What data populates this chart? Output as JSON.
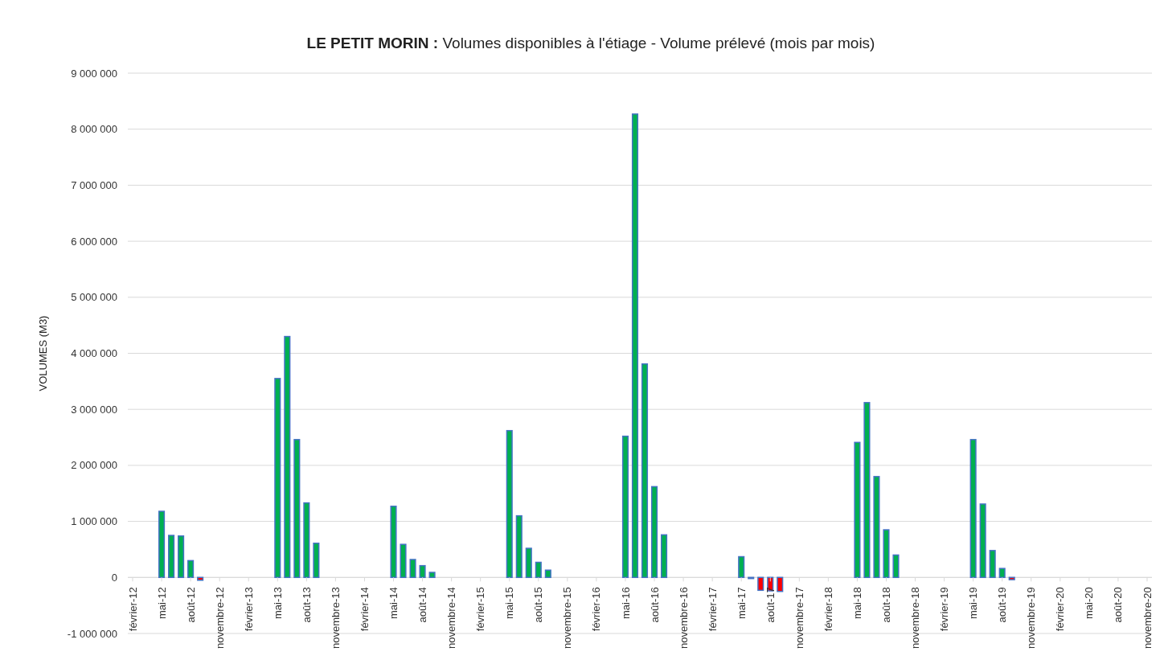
{
  "chart_data": {
    "type": "bar",
    "title": "LE PETIT MORIN : Volumes disponibles à l'étiage - Volume prélevé (mois par mois)",
    "ylabel": "VOLUMES (M3)",
    "categories": [
      "février-12",
      null,
      null,
      "mai-12",
      null,
      null,
      "août-12",
      null,
      null,
      "novembre-12",
      null,
      null,
      "février-13",
      null,
      null,
      "mai-13",
      null,
      null,
      "août-13",
      null,
      null,
      "novembre-13",
      null,
      null,
      "février-14",
      null,
      null,
      "mai-14",
      null,
      null,
      "août-14",
      null,
      null,
      "novembre-14",
      null,
      null,
      "février-15",
      null,
      null,
      "mai-15",
      null,
      null,
      "août-15",
      null,
      null,
      "novembre-15",
      null,
      null,
      "février-16",
      null,
      null,
      "mai-16",
      null,
      null,
      "août-16",
      null,
      null,
      "novembre-16",
      null,
      null,
      "février-17",
      null,
      null,
      "mai-17",
      null,
      null,
      "août-17",
      null,
      null,
      "novembre-17",
      null,
      null,
      "février-18",
      null,
      null,
      "mai-18",
      null,
      null,
      "août-18",
      null,
      null,
      "novembre-18",
      null,
      null,
      "février-19",
      null,
      null,
      "mai-19",
      null,
      null,
      "août-19",
      null,
      null,
      "novembre-19",
      null,
      null,
      "février-20",
      null,
      null,
      "mai-20",
      null,
      null,
      "août-20",
      null,
      null,
      "novembre-20"
    ],
    "values": [
      null,
      null,
      null,
      1180000,
      750000,
      740000,
      300000,
      -50000,
      null,
      null,
      null,
      null,
      null,
      null,
      null,
      3550000,
      4300000,
      2460000,
      1330000,
      610000,
      null,
      null,
      null,
      null,
      null,
      null,
      null,
      1270000,
      590000,
      320000,
      210000,
      90000,
      null,
      null,
      null,
      null,
      null,
      null,
      null,
      2620000,
      1100000,
      520000,
      270000,
      130000,
      null,
      null,
      null,
      null,
      null,
      null,
      null,
      2520000,
      8270000,
      3810000,
      1620000,
      760000,
      null,
      null,
      null,
      null,
      null,
      null,
      null,
      370000,
      -20000,
      -230000,
      -240000,
      -250000,
      null,
      null,
      null,
      null,
      null,
      null,
      null,
      2410000,
      3120000,
      1800000,
      850000,
      400000,
      null,
      null,
      null,
      null,
      null,
      null,
      null,
      2460000,
      1310000,
      480000,
      160000,
      -40000,
      null,
      null,
      null,
      null,
      null,
      null,
      null,
      null,
      null,
      null,
      null,
      null,
      null,
      null
    ],
    "colors": [
      null,
      null,
      null,
      "#00b050",
      "#00b050",
      "#00b050",
      "#00b050",
      "#ff0000",
      null,
      null,
      null,
      null,
      null,
      null,
      null,
      "#00b050",
      "#00b050",
      "#00b050",
      "#00b050",
      "#00b050",
      null,
      null,
      null,
      null,
      null,
      null,
      null,
      "#00b050",
      "#00b050",
      "#00b050",
      "#00b050",
      "#00b050",
      null,
      null,
      null,
      null,
      null,
      null,
      null,
      "#00b050",
      "#00b050",
      "#00b050",
      "#00b050",
      "#00b050",
      null,
      null,
      null,
      null,
      null,
      null,
      null,
      "#00b050",
      "#00b050",
      "#00b050",
      "#00b050",
      "#00b050",
      null,
      null,
      null,
      null,
      null,
      null,
      null,
      "#00b050",
      "#4472c4",
      "#ff0000",
      "#ff0000",
      "#ff0000",
      null,
      null,
      null,
      null,
      null,
      null,
      null,
      "#00b050",
      "#00b050",
      "#00b050",
      "#00b050",
      "#00b050",
      null,
      null,
      null,
      null,
      null,
      null,
      null,
      "#00b050",
      "#00b050",
      "#00b050",
      "#00b050",
      "#ff0000",
      null,
      null,
      null,
      null,
      null,
      null,
      null,
      null,
      null,
      null,
      null,
      null,
      null,
      null
    ],
    "ylim": [
      -1000000,
      9000000
    ],
    "yticks": [
      {
        "value": -1000000,
        "label": "-1 000 000"
      },
      {
        "value": 0,
        "label": "0"
      },
      {
        "value": 1000000,
        "label": "1 000 000"
      },
      {
        "value": 2000000,
        "label": "2 000 000"
      },
      {
        "value": 3000000,
        "label": "3 000 000"
      },
      {
        "value": 4000000,
        "label": "4 000 000"
      },
      {
        "value": 5000000,
        "label": "5 000 000"
      },
      {
        "value": 6000000,
        "label": "6 000 000"
      },
      {
        "value": 7000000,
        "label": "7 000 000"
      },
      {
        "value": 8000000,
        "label": "8 000 000"
      },
      {
        "value": 9000000,
        "label": "9 000 000"
      }
    ],
    "grid": "y"
  }
}
